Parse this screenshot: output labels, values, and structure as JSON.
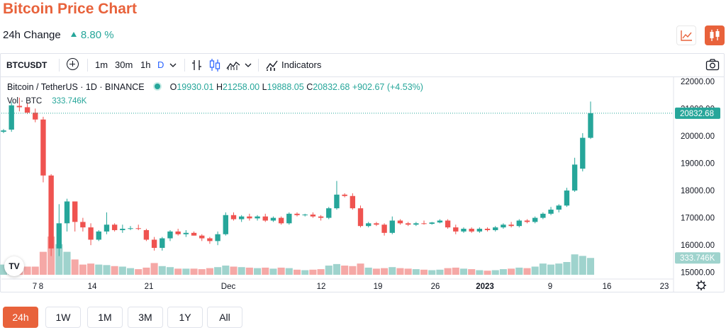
{
  "page": {
    "title": "Bitcoin Price Chart",
    "change_label": "24h Change",
    "change_value": "8.80 %"
  },
  "toolbar": {
    "symbol": "BTCUSDT",
    "intervals": [
      "1m",
      "30m",
      "1h",
      "D"
    ],
    "active_interval": "D",
    "indicators_label": "Indicators",
    "icons": [
      "add-symbol-icon",
      "chevron-down-icon",
      "bar-style-icon",
      "candle-style-icon",
      "area-style-icon",
      "indicators-icon",
      "camera-icon"
    ]
  },
  "legend": {
    "title": "Bitcoin / TetherUS · 1D · BINANCE",
    "o_label": "O",
    "o_value": "19930.01",
    "h_label": "H",
    "h_value": "21258.00",
    "l_label": "L",
    "l_value": "19888.05",
    "c_label": "C",
    "c_value": "20832.68",
    "change": "+902.67 (+4.53%)",
    "vol_label": "Vol · BTC",
    "vol_value": "333.746K"
  },
  "chart_data": {
    "type": "candlestick",
    "y_axis_ticks": [
      "22000.00",
      "21000.00",
      "20000.00",
      "19000.00",
      "18000.00",
      "17000.00",
      "16000.00",
      "15000.00"
    ],
    "ylim": [
      14760,
      22150
    ],
    "x_axis_ticks": [
      "7",
      "8",
      "14",
      "21",
      "Dec",
      "12",
      "19",
      "26",
      "2023",
      "9",
      "16",
      "23"
    ],
    "last_price_label": "20832.68",
    "last_volume_label": "333.746K",
    "candles": [
      {
        "o": 20150,
        "h": 20250,
        "l": 20100,
        "c": 20200,
        "v": 20,
        "up": true
      },
      {
        "o": 20230,
        "h": 21250,
        "l": 20150,
        "c": 21120,
        "v": 25,
        "up": true
      },
      {
        "o": 21100,
        "h": 21400,
        "l": 20900,
        "c": 21050,
        "v": 20,
        "up": false
      },
      {
        "o": 21050,
        "h": 21200,
        "l": 20800,
        "c": 20850,
        "v": 16,
        "up": false
      },
      {
        "o": 20850,
        "h": 21000,
        "l": 20500,
        "c": 20600,
        "v": 16,
        "up": false
      },
      {
        "o": 20600,
        "h": 20700,
        "l": 18300,
        "c": 18550,
        "v": 45,
        "up": false
      },
      {
        "o": 18550,
        "h": 18600,
        "l": 15600,
        "c": 15880,
        "v": 75,
        "up": false
      },
      {
        "o": 15880,
        "h": 17500,
        "l": 15600,
        "c": 16800,
        "v": 60,
        "up": true
      },
      {
        "o": 16800,
        "h": 17700,
        "l": 16500,
        "c": 17600,
        "v": 45,
        "up": true
      },
      {
        "o": 17600,
        "h": 17600,
        "l": 16500,
        "c": 16850,
        "v": 30,
        "up": false
      },
      {
        "o": 16850,
        "h": 17000,
        "l": 16500,
        "c": 16650,
        "v": 20,
        "up": false
      },
      {
        "o": 16650,
        "h": 16800,
        "l": 16000,
        "c": 16200,
        "v": 22,
        "up": false
      },
      {
        "o": 16200,
        "h": 16550,
        "l": 16150,
        "c": 16500,
        "v": 20,
        "up": true
      },
      {
        "o": 16500,
        "h": 17200,
        "l": 16400,
        "c": 16750,
        "v": 19,
        "up": true
      },
      {
        "o": 16750,
        "h": 16800,
        "l": 16500,
        "c": 16550,
        "v": 17,
        "up": false
      },
      {
        "o": 16550,
        "h": 16750,
        "l": 16450,
        "c": 16600,
        "v": 16,
        "up": true
      },
      {
        "o": 16600,
        "h": 16700,
        "l": 16550,
        "c": 16620,
        "v": 13,
        "up": true
      },
      {
        "o": 16620,
        "h": 16750,
        "l": 16550,
        "c": 16600,
        "v": 11,
        "up": false
      },
      {
        "o": 16550,
        "h": 16600,
        "l": 16150,
        "c": 16200,
        "v": 14,
        "up": false
      },
      {
        "o": 16200,
        "h": 16300,
        "l": 15800,
        "c": 15900,
        "v": 23,
        "up": false
      },
      {
        "o": 15900,
        "h": 16300,
        "l": 15800,
        "c": 16250,
        "v": 17,
        "up": true
      },
      {
        "o": 16250,
        "h": 16550,
        "l": 16150,
        "c": 16500,
        "v": 15,
        "up": true
      },
      {
        "o": 16500,
        "h": 16600,
        "l": 16350,
        "c": 16400,
        "v": 12,
        "up": false
      },
      {
        "o": 16400,
        "h": 16550,
        "l": 16300,
        "c": 16450,
        "v": 12,
        "up": true
      },
      {
        "o": 16450,
        "h": 16500,
        "l": 16350,
        "c": 16350,
        "v": 12,
        "up": false
      },
      {
        "o": 16350,
        "h": 16400,
        "l": 16150,
        "c": 16250,
        "v": 11,
        "up": false
      },
      {
        "o": 16250,
        "h": 16300,
        "l": 16050,
        "c": 16150,
        "v": 13,
        "up": false
      },
      {
        "o": 16150,
        "h": 16500,
        "l": 16000,
        "c": 16400,
        "v": 15,
        "up": true
      },
      {
        "o": 16400,
        "h": 17200,
        "l": 16350,
        "c": 17100,
        "v": 18,
        "up": true
      },
      {
        "o": 17100,
        "h": 17200,
        "l": 16900,
        "c": 16950,
        "v": 16,
        "up": false
      },
      {
        "o": 16950,
        "h": 17100,
        "l": 16850,
        "c": 17050,
        "v": 15,
        "up": true
      },
      {
        "o": 17050,
        "h": 17150,
        "l": 16900,
        "c": 16980,
        "v": 14,
        "up": false
      },
      {
        "o": 16980,
        "h": 17100,
        "l": 16900,
        "c": 17050,
        "v": 13,
        "up": true
      },
      {
        "o": 17050,
        "h": 17150,
        "l": 16850,
        "c": 16900,
        "v": 14,
        "up": false
      },
      {
        "o": 16900,
        "h": 17050,
        "l": 16850,
        "c": 17000,
        "v": 12,
        "up": true
      },
      {
        "o": 17000,
        "h": 17050,
        "l": 16750,
        "c": 16800,
        "v": 14,
        "up": false
      },
      {
        "o": 16800,
        "h": 17200,
        "l": 16750,
        "c": 17150,
        "v": 13,
        "up": true
      },
      {
        "o": 17150,
        "h": 17200,
        "l": 17050,
        "c": 17100,
        "v": 10,
        "up": false
      },
      {
        "o": 17100,
        "h": 17150,
        "l": 17050,
        "c": 17120,
        "v": 9,
        "up": true
      },
      {
        "o": 17120,
        "h": 17200,
        "l": 17000,
        "c": 17050,
        "v": 10,
        "up": false
      },
      {
        "o": 17050,
        "h": 17100,
        "l": 16900,
        "c": 17000,
        "v": 11,
        "up": false
      },
      {
        "o": 17000,
        "h": 17400,
        "l": 16950,
        "c": 17350,
        "v": 18,
        "up": true
      },
      {
        "o": 17350,
        "h": 18350,
        "l": 17300,
        "c": 17850,
        "v": 21,
        "up": true
      },
      {
        "o": 17850,
        "h": 17900,
        "l": 17750,
        "c": 17800,
        "v": 18,
        "up": false
      },
      {
        "o": 17800,
        "h": 17900,
        "l": 17300,
        "c": 17350,
        "v": 17,
        "up": false
      },
      {
        "o": 17350,
        "h": 17450,
        "l": 16650,
        "c": 16700,
        "v": 22,
        "up": false
      },
      {
        "o": 16700,
        "h": 16850,
        "l": 16650,
        "c": 16800,
        "v": 14,
        "up": true
      },
      {
        "o": 16800,
        "h": 16850,
        "l": 16700,
        "c": 16750,
        "v": 12,
        "up": false
      },
      {
        "o": 16750,
        "h": 16800,
        "l": 16350,
        "c": 16450,
        "v": 13,
        "up": false
      },
      {
        "o": 16450,
        "h": 17050,
        "l": 16400,
        "c": 16900,
        "v": 15,
        "up": true
      },
      {
        "o": 16900,
        "h": 16950,
        "l": 16750,
        "c": 16800,
        "v": 13,
        "up": false
      },
      {
        "o": 16800,
        "h": 16850,
        "l": 16700,
        "c": 16750,
        "v": 12,
        "up": false
      },
      {
        "o": 16750,
        "h": 16850,
        "l": 16700,
        "c": 16800,
        "v": 11,
        "up": true
      },
      {
        "o": 16800,
        "h": 16900,
        "l": 16750,
        "c": 16780,
        "v": 10,
        "up": false
      },
      {
        "o": 16780,
        "h": 16850,
        "l": 16750,
        "c": 16830,
        "v": 9,
        "up": true
      },
      {
        "o": 16830,
        "h": 16950,
        "l": 16800,
        "c": 16900,
        "v": 10,
        "up": true
      },
      {
        "o": 16900,
        "h": 16950,
        "l": 16600,
        "c": 16650,
        "v": 13,
        "up": false
      },
      {
        "o": 16650,
        "h": 16750,
        "l": 16400,
        "c": 16500,
        "v": 14,
        "up": false
      },
      {
        "o": 16500,
        "h": 16650,
        "l": 16450,
        "c": 16600,
        "v": 12,
        "up": true
      },
      {
        "o": 16600,
        "h": 16650,
        "l": 16450,
        "c": 16500,
        "v": 11,
        "up": false
      },
      {
        "o": 16500,
        "h": 16650,
        "l": 16450,
        "c": 16600,
        "v": 9,
        "up": true
      },
      {
        "o": 16600,
        "h": 16650,
        "l": 16500,
        "c": 16550,
        "v": 8,
        "up": false
      },
      {
        "o": 16550,
        "h": 16700,
        "l": 16500,
        "c": 16650,
        "v": 9,
        "up": true
      },
      {
        "o": 16650,
        "h": 16800,
        "l": 16600,
        "c": 16750,
        "v": 11,
        "up": true
      },
      {
        "o": 16750,
        "h": 16850,
        "l": 16650,
        "c": 16700,
        "v": 12,
        "up": false
      },
      {
        "o": 16700,
        "h": 16950,
        "l": 16650,
        "c": 16900,
        "v": 14,
        "up": true
      },
      {
        "o": 16900,
        "h": 16950,
        "l": 16800,
        "c": 16850,
        "v": 13,
        "up": false
      },
      {
        "o": 16850,
        "h": 17050,
        "l": 16800,
        "c": 17000,
        "v": 16,
        "up": true
      },
      {
        "o": 17000,
        "h": 17200,
        "l": 16950,
        "c": 17150,
        "v": 22,
        "up": true
      },
      {
        "o": 17150,
        "h": 17400,
        "l": 17100,
        "c": 17300,
        "v": 20,
        "up": true
      },
      {
        "o": 17300,
        "h": 17500,
        "l": 17200,
        "c": 17450,
        "v": 22,
        "up": true
      },
      {
        "o": 17450,
        "h": 18100,
        "l": 17400,
        "c": 18000,
        "v": 25,
        "up": true
      },
      {
        "o": 18000,
        "h": 19200,
        "l": 17950,
        "c": 18950,
        "v": 40,
        "up": true
      },
      {
        "o": 18800,
        "h": 20100,
        "l": 18700,
        "c": 19930,
        "v": 37,
        "up": true
      },
      {
        "o": 19930,
        "h": 21258,
        "l": 19888,
        "c": 20832,
        "v": 33,
        "up": true
      }
    ]
  },
  "range_tabs": [
    "24h",
    "1W",
    "1M",
    "3M",
    "1Y",
    "All"
  ],
  "active_range": "24h",
  "colors": {
    "up": "#26a69a",
    "down": "#ef5350",
    "up_volume": "#9fd3cd",
    "down_volume": "#f5a8a6",
    "accent": "#e8623b",
    "last_price_line": "#26a69a"
  }
}
